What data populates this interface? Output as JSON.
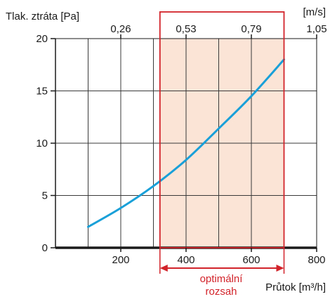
{
  "chart_data": {
    "type": "line",
    "ylabel": "Tlak. ztráta [Pa]",
    "xlabel": "Průtok [m³/h]",
    "top_axis_unit": "[m/s]",
    "xlim": [
      0,
      800
    ],
    "ylim": [
      0,
      20
    ],
    "x_ticks": [
      200,
      400,
      600,
      800
    ],
    "y_ticks": [
      0,
      5,
      10,
      15,
      20
    ],
    "x_tick_labels": [
      "200",
      "400",
      "600",
      "800"
    ],
    "y_tick_labels": [
      "0",
      "5",
      "10",
      "15",
      "20"
    ],
    "top_ticks": [
      {
        "x": 200,
        "label": "0,26"
      },
      {
        "x": 400,
        "label": "0,53"
      },
      {
        "x": 600,
        "label": "0,79"
      },
      {
        "x": 800,
        "label": "1,05"
      }
    ],
    "vertical_gridlines_x": [
      100,
      200,
      300,
      400,
      500,
      600,
      700
    ],
    "horizontal_gridlines_y": [
      5,
      10,
      15,
      20
    ],
    "grid": true,
    "series": [
      {
        "color": "#1aa0d8",
        "x": [
          100,
          200,
          300,
          400,
          500,
          600,
          700
        ],
        "y": [
          2.0,
          3.8,
          5.9,
          8.4,
          11.4,
          14.5,
          18.0
        ]
      }
    ],
    "optimal_range": {
      "x": [
        320,
        700
      ],
      "label_line1": "optimální",
      "label_line2": "rozsah",
      "fill_color": "#fbe3d6",
      "border_color": "#d2232a"
    },
    "colors": {
      "axis": "#1a1a1a",
      "grid": "#3a3a3a",
      "accent": "#d2232a"
    }
  }
}
